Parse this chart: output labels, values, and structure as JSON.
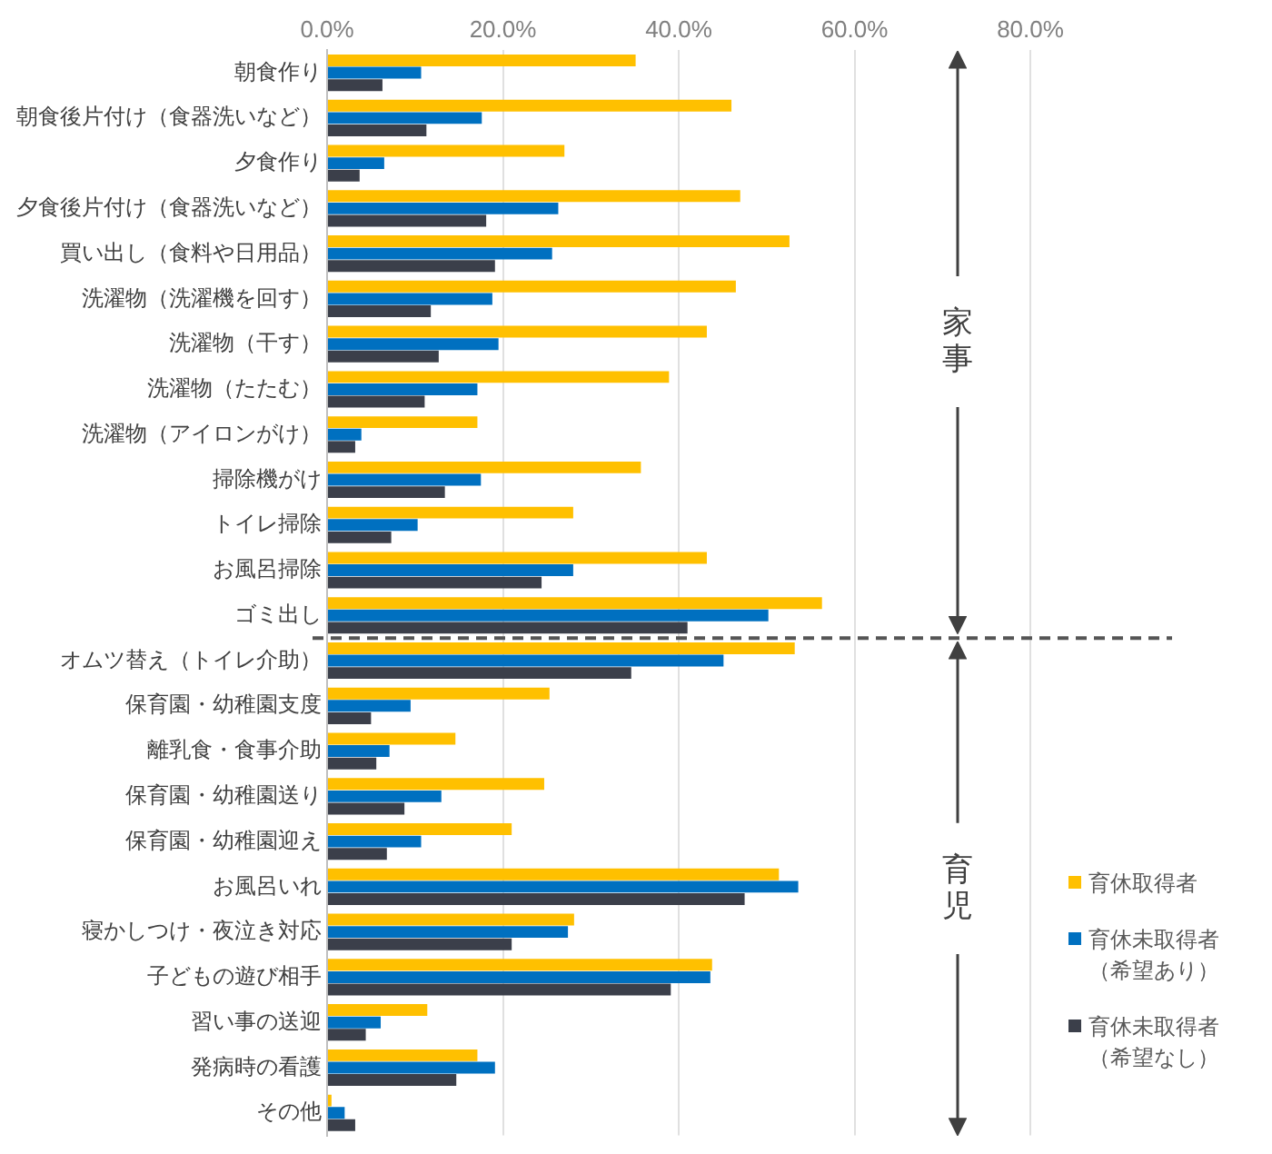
{
  "chart_data": {
    "type": "bar",
    "orientation": "horizontal",
    "categories": [
      "朝食作り",
      "朝食後片付け（食器洗いなど）",
      "夕食作り",
      "夕食後片付け（食器洗いなど）",
      "買い出し（食料や日用品）",
      "洗濯物（洗濯機を回す）",
      "洗濯物（干す）",
      "洗濯物（たたむ）",
      "洗濯物（アイロンがけ）",
      "掃除機がけ",
      "トイレ掃除",
      "お風呂掃除",
      "ゴミ出し",
      "オムツ替え（トイレ介助）",
      "保育園・幼稚園支度",
      "離乳食・食事介助",
      "保育園・幼稚園送り",
      "保育園・幼稚園迎え",
      "お風呂いれ",
      "寝かしつけ・夜泣き対応",
      "子どもの遊び相手",
      "習い事の送迎",
      "発病時の看護",
      "その他"
    ],
    "series": [
      {
        "name": "育休取得者",
        "color": "#ffc000",
        "values": [
          35.1,
          46.0,
          27.0,
          47.0,
          52.6,
          46.5,
          43.2,
          38.9,
          17.1,
          35.7,
          28.0,
          43.2,
          56.3,
          53.2,
          25.3,
          14.6,
          24.7,
          21.0,
          51.4,
          28.1,
          43.8,
          11.4,
          17.1,
          0.5
        ]
      },
      {
        "name": "育休未取得者（希望あり）",
        "color": "#0070c0",
        "values": [
          10.7,
          17.6,
          6.5,
          26.3,
          25.6,
          18.8,
          19.5,
          17.1,
          3.9,
          17.5,
          10.3,
          28.0,
          50.2,
          45.1,
          9.5,
          7.1,
          13.0,
          10.7,
          53.6,
          27.4,
          43.6,
          6.1,
          19.1,
          2.0
        ]
      },
      {
        "name": "育休未取得者（希望なし）",
        "color": "#3b3f4a",
        "values": [
          6.3,
          11.3,
          3.7,
          18.1,
          19.1,
          11.8,
          12.7,
          11.1,
          3.2,
          13.4,
          7.3,
          24.4,
          41.0,
          34.6,
          5.0,
          5.6,
          8.8,
          6.8,
          47.5,
          21.0,
          39.1,
          4.4,
          14.7,
          3.2
        ]
      }
    ],
    "xlim": [
      0,
      80
    ],
    "xticks": [
      {
        "value": 0,
        "label": "0.0%"
      },
      {
        "value": 20,
        "label": "20.0%"
      },
      {
        "value": 40,
        "label": "40.0%"
      },
      {
        "value": 60,
        "label": "60.0%"
      },
      {
        "value": 80,
        "label": "80.0%"
      }
    ],
    "ref_lines": [
      {
        "axis": "y",
        "value": "オムツ替え（トイレ介助）",
        "color": "#555555",
        "line_style": "dashed"
      }
    ],
    "annotations": [
      "家事",
      "育児"
    ],
    "grid": "x",
    "legend": "right"
  }
}
